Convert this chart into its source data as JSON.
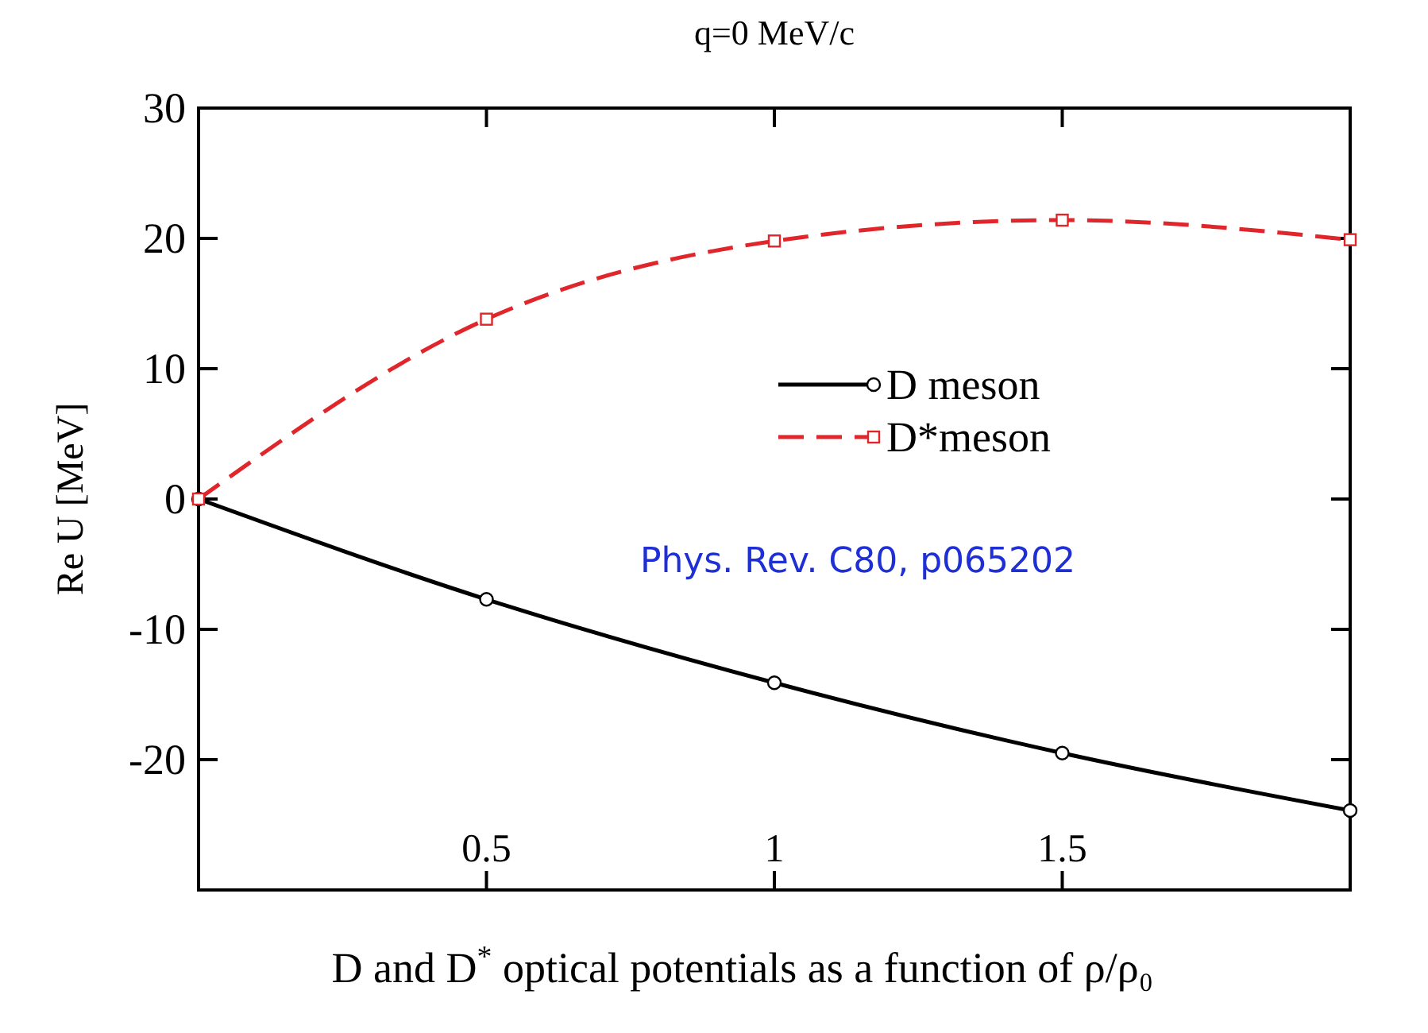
{
  "chart_data": {
    "type": "line",
    "title": "q=0 MeV/c",
    "xlabel": "D and D$^{*}$ optical potentials as a function of ρ/ρ₀",
    "ylabel": "Re U [MeV]",
    "x": [
      0,
      0.5,
      1,
      1.5,
      2
    ],
    "series": [
      {
        "name": "D meson",
        "color": "#000000",
        "values": [
          0,
          -7.7,
          -14.1,
          -19.5,
          -23.9
        ],
        "marker": "circle",
        "line_style": "solid"
      },
      {
        "name": "D*meson",
        "color": "#e0262b",
        "values": [
          0,
          13.8,
          19.8,
          21.4,
          19.9
        ],
        "marker": "square",
        "line_style": "dashed"
      }
    ],
    "xlim": [
      0,
      2
    ],
    "xticks": [
      0.5,
      1,
      1.5
    ],
    "ylim": [
      -30,
      30
    ],
    "yticks": [
      -20,
      -10,
      0,
      10,
      20,
      30
    ],
    "legend": "right",
    "grid": false,
    "annotations": [
      "Phys. Rev. C80, p065202"
    ]
  }
}
